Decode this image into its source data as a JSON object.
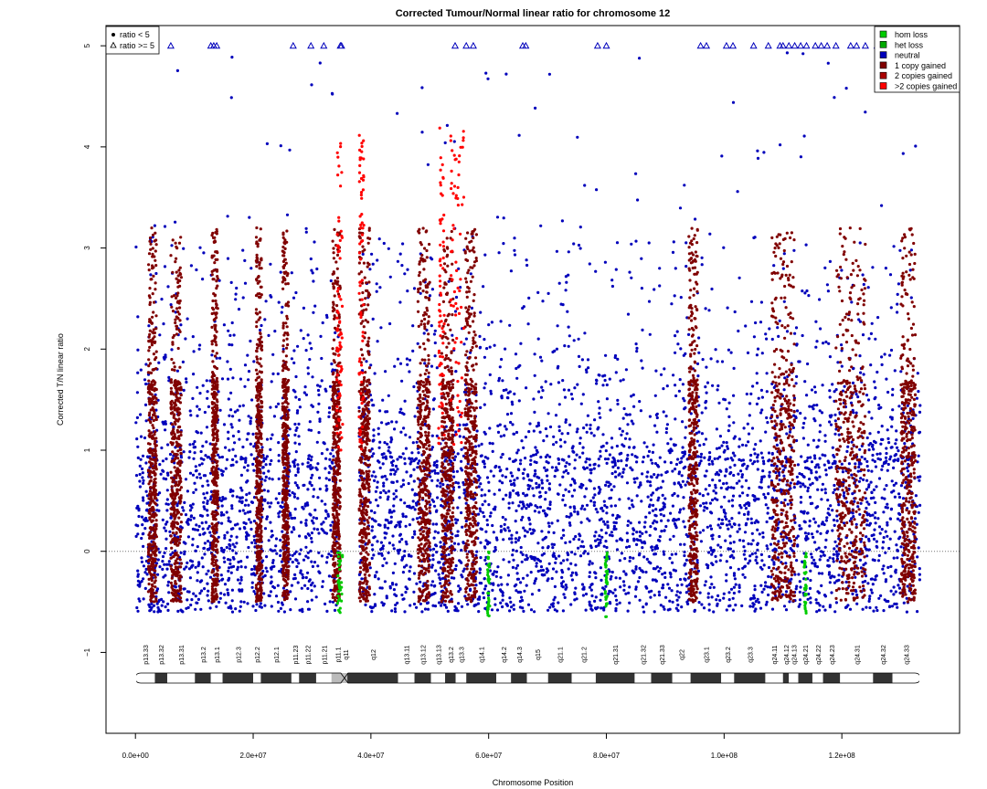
{
  "chart_data": {
    "type": "scatter",
    "title": "Corrected Tumour/Normal linear ratio for chromosome  12",
    "xlabel": "Chromosome Position",
    "ylabel": "Corrected T/N linear ratio",
    "xlim": [
      -5000000,
      140000000
    ],
    "ylim": [
      -1.8,
      5.2
    ],
    "x_ticks": [
      0,
      20000000,
      40000000,
      60000000,
      80000000,
      100000000,
      120000000
    ],
    "x_tick_labels": [
      "0.0e+00",
      "2.0e+07",
      "4.0e+07",
      "6.0e+07",
      "8.0e+07",
      "1.0e+08",
      "1.2e+08"
    ],
    "y_ticks": [
      -1,
      0,
      1,
      2,
      3,
      4,
      5
    ],
    "y_tick_labels": [
      "−1",
      "0",
      "1",
      "2",
      "3",
      "4",
      "5"
    ],
    "reference_line": 0,
    "chromosome_length": 133300000,
    "centromere": [
      34500000,
      38000000
    ],
    "marker_legend": [
      {
        "label": "ratio < 5",
        "marker": "dot"
      },
      {
        "label": "ratio >= 5",
        "marker": "triangle"
      }
    ],
    "legend_position": "top-right",
    "series": [
      {
        "name": "hom loss",
        "color": "#00cc00"
      },
      {
        "name": "het loss",
        "color": "#00aa00"
      },
      {
        "name": "neutral",
        "color": "#0000bb"
      },
      {
        "name": "1 copy gained",
        "color": "#800000"
      },
      {
        "name": "2 copies gained",
        "color": "#aa0000"
      },
      {
        "name": ">2 copies gained",
        "color": "#ff0000"
      }
    ],
    "bands": [
      {
        "name": "p13.33",
        "start": 0,
        "end": 3300000,
        "stain": "gneg"
      },
      {
        "name": "p13.32",
        "start": 3300000,
        "end": 5400000,
        "stain": "gpos"
      },
      {
        "name": "p13.31",
        "start": 5400000,
        "end": 10100000,
        "stain": "gneg"
      },
      {
        "name": "p13.2",
        "start": 10100000,
        "end": 12800000,
        "stain": "gpos"
      },
      {
        "name": "p13.1",
        "start": 12800000,
        "end": 14800000,
        "stain": "gneg"
      },
      {
        "name": "p12.3",
        "start": 14800000,
        "end": 20000000,
        "stain": "gpos"
      },
      {
        "name": "p12.2",
        "start": 20000000,
        "end": 21300000,
        "stain": "gneg"
      },
      {
        "name": "p12.1",
        "start": 21300000,
        "end": 26500000,
        "stain": "gpos"
      },
      {
        "name": "p11.23",
        "start": 26500000,
        "end": 27800000,
        "stain": "gneg"
      },
      {
        "name": "p11.22",
        "start": 27800000,
        "end": 30700000,
        "stain": "gpos"
      },
      {
        "name": "p11.21",
        "start": 30700000,
        "end": 33300000,
        "stain": "gneg"
      },
      {
        "name": "p11.1",
        "start": 33300000,
        "end": 35400000,
        "stain": "acen"
      },
      {
        "name": "q11",
        "start": 35400000,
        "end": 36000000,
        "stain": "acen"
      },
      {
        "name": "q12",
        "start": 36000000,
        "end": 44600000,
        "stain": "gpos"
      },
      {
        "name": "q13.11",
        "start": 44600000,
        "end": 47400000,
        "stain": "gneg"
      },
      {
        "name": "q13.12",
        "start": 47400000,
        "end": 50200000,
        "stain": "gpos"
      },
      {
        "name": "q13.13",
        "start": 50200000,
        "end": 52600000,
        "stain": "gneg"
      },
      {
        "name": "q13.2",
        "start": 52600000,
        "end": 54400000,
        "stain": "gpos"
      },
      {
        "name": "q13.3",
        "start": 54400000,
        "end": 56200000,
        "stain": "gneg"
      },
      {
        "name": "q14.1",
        "start": 56200000,
        "end": 61300000,
        "stain": "gpos"
      },
      {
        "name": "q14.2",
        "start": 61300000,
        "end": 63800000,
        "stain": "gneg"
      },
      {
        "name": "q14.3",
        "start": 63800000,
        "end": 66500000,
        "stain": "gpos"
      },
      {
        "name": "q15",
        "start": 66500000,
        "end": 70100000,
        "stain": "gneg"
      },
      {
        "name": "q21.1",
        "start": 70100000,
        "end": 74100000,
        "stain": "gpos"
      },
      {
        "name": "q21.2",
        "start": 74100000,
        "end": 78200000,
        "stain": "gneg"
      },
      {
        "name": "q21.31",
        "start": 78200000,
        "end": 84800000,
        "stain": "gpos"
      },
      {
        "name": "q21.32",
        "start": 84800000,
        "end": 87600000,
        "stain": "gneg"
      },
      {
        "name": "q21.33",
        "start": 87600000,
        "end": 91200000,
        "stain": "gpos"
      },
      {
        "name": "q22",
        "start": 91200000,
        "end": 94300000,
        "stain": "gneg"
      },
      {
        "name": "q23.1",
        "start": 94300000,
        "end": 99500000,
        "stain": "gpos"
      },
      {
        "name": "q23.2",
        "start": 99500000,
        "end": 101700000,
        "stain": "gneg"
      },
      {
        "name": "q23.3",
        "start": 101700000,
        "end": 107000000,
        "stain": "gpos"
      },
      {
        "name": "q24.11",
        "start": 107000000,
        "end": 110000000,
        "stain": "gneg"
      },
      {
        "name": "q24.12",
        "start": 110000000,
        "end": 111000000,
        "stain": "gpos"
      },
      {
        "name": "q24.13",
        "start": 111000000,
        "end": 112600000,
        "stain": "gneg"
      },
      {
        "name": "q24.21",
        "start": 112600000,
        "end": 115000000,
        "stain": "gpos"
      },
      {
        "name": "q24.22",
        "start": 115000000,
        "end": 116800000,
        "stain": "gneg"
      },
      {
        "name": "q24.23",
        "start": 116800000,
        "end": 119700000,
        "stain": "gpos"
      },
      {
        "name": "q24.31",
        "start": 119700000,
        "end": 125300000,
        "stain": "gneg"
      },
      {
        "name": "q24.32",
        "start": 125300000,
        "end": 128600000,
        "stain": "gpos"
      },
      {
        "name": "q24.33",
        "start": 128600000,
        "end": 133300000,
        "stain": "gneg"
      }
    ],
    "gained_regions": [
      [
        2200000,
        3600000
      ],
      [
        6000000,
        7800000
      ],
      [
        13000000,
        14000000
      ],
      [
        20500000,
        21500000
      ],
      [
        25000000,
        26000000
      ],
      [
        33500000,
        34800000
      ],
      [
        38000000,
        39800000
      ],
      [
        48000000,
        50000000
      ],
      [
        52000000,
        54000000
      ],
      [
        56000000,
        58000000
      ],
      [
        94000000,
        95500000
      ],
      [
        108000000,
        112000000
      ],
      [
        119000000,
        124000000
      ],
      [
        130000000,
        132500000
      ]
    ],
    "amplified_regions": [
      [
        34200000,
        35200000
      ],
      [
        38000000,
        38800000
      ],
      [
        51500000,
        52500000
      ],
      [
        53500000,
        55800000
      ]
    ],
    "loss_regions": [
      [
        34300000,
        35200000
      ],
      [
        59800000,
        60200000
      ],
      [
        79800000,
        80200000
      ],
      [
        113600000,
        114000000
      ]
    ]
  }
}
